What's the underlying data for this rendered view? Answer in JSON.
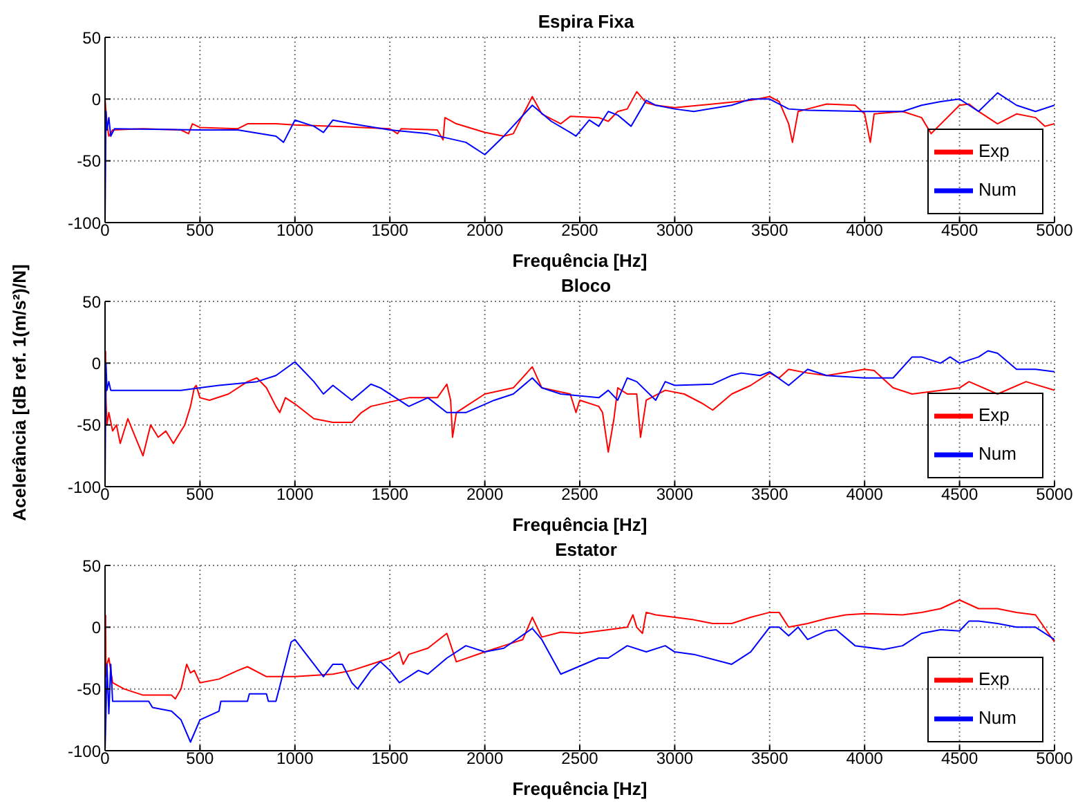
{
  "chart_data": [
    {
      "type": "line",
      "title": "Espira Fixa",
      "xlabel": "Frequência [Hz]",
      "xlim": [
        0,
        5000
      ],
      "xticks": [
        0,
        500,
        1000,
        1500,
        2000,
        2500,
        3000,
        3500,
        4000,
        4500,
        5000
      ],
      "ylim": [
        -100,
        50
      ],
      "yticks": [
        -100,
        -50,
        0,
        50
      ],
      "grid": true,
      "legend": "bottom right",
      "series": [
        {
          "name": "Exp",
          "color": "#ff0000",
          "x": [
            0,
            10,
            20,
            40,
            200,
            400,
            440,
            460,
            500,
            700,
            750,
            900,
            1000,
            1200,
            1500,
            1540,
            1560,
            1750,
            1780,
            1790,
            1850,
            2000,
            2100,
            2150,
            2250,
            2300,
            2400,
            2450,
            2600,
            2650,
            2700,
            2750,
            2800,
            2850,
            2900,
            3000,
            3200,
            3400,
            3500,
            3550,
            3600,
            3620,
            3650,
            3700,
            3800,
            3950,
            4000,
            4030,
            4050,
            4200,
            4300,
            4350,
            4500,
            4550,
            4600,
            4700,
            4800,
            4900,
            4950,
            5000
          ],
          "values": [
            0,
            -20,
            -30,
            -25,
            -24,
            -25,
            -28,
            -20,
            -23,
            -24,
            -20,
            -20,
            -21,
            -22,
            -24,
            -28,
            -24,
            -25,
            -33,
            -15,
            -20,
            -27,
            -30,
            -28,
            2,
            -12,
            -20,
            -14,
            -15,
            -18,
            -10,
            -8,
            6,
            -3,
            -5,
            -7,
            -4,
            -1,
            2,
            -2,
            -20,
            -35,
            -10,
            -8,
            -4,
            -5,
            -12,
            -35,
            -12,
            -10,
            -15,
            -28,
            -5,
            -4,
            -10,
            -20,
            -12,
            -15,
            -22,
            -20
          ]
        },
        {
          "name": "Num",
          "color": "#0000ff",
          "x": [
            0,
            5,
            10,
            20,
            30,
            50,
            500,
            700,
            900,
            940,
            1000,
            1100,
            1150,
            1200,
            1300,
            1500,
            1700,
            1900,
            2000,
            2100,
            2250,
            2350,
            2450,
            2480,
            2550,
            2600,
            2650,
            2700,
            2770,
            2850,
            2900,
            3000,
            3100,
            3300,
            3400,
            3500,
            3600,
            3700,
            4000,
            4200,
            4300,
            4400,
            4500,
            4550,
            4600,
            4700,
            4800,
            4900,
            5000
          ],
          "values": [
            -100,
            -10,
            -25,
            -15,
            -30,
            -24,
            -25,
            -25,
            -30,
            -35,
            -17,
            -22,
            -27,
            -17,
            -20,
            -25,
            -28,
            -35,
            -45,
            -30,
            -5,
            -18,
            -27,
            -30,
            -17,
            -22,
            -10,
            -13,
            -22,
            -1,
            -5,
            -8,
            -10,
            -5,
            0,
            0,
            -8,
            -9,
            -10,
            -10,
            -5,
            -2,
            0,
            -5,
            -10,
            5,
            -5,
            -10,
            -5
          ]
        }
      ]
    },
    {
      "type": "line",
      "title": "Bloco",
      "xlabel": "Frequência [Hz]",
      "ylabel": "Acelerância [dB ref. 1(m/s²)/N]",
      "xlim": [
        0,
        5000
      ],
      "xticks": [
        0,
        500,
        1000,
        1500,
        2000,
        2500,
        3000,
        3500,
        4000,
        4500,
        5000
      ],
      "ylim": [
        -100,
        50
      ],
      "yticks": [
        -100,
        -50,
        0,
        50
      ],
      "grid": true,
      "legend": "bottom right",
      "series": [
        {
          "name": "Exp",
          "color": "#ff0000",
          "x": [
            3,
            5,
            10,
            20,
            40,
            60,
            80,
            120,
            160,
            200,
            240,
            280,
            320,
            360,
            400,
            420,
            450,
            470,
            480,
            500,
            550,
            650,
            750,
            800,
            850,
            900,
            920,
            950,
            1000,
            1100,
            1200,
            1300,
            1350,
            1400,
            1600,
            1750,
            1800,
            1820,
            1830,
            1850,
            1900,
            2000,
            2150,
            2250,
            2300,
            2450,
            2480,
            2500,
            2600,
            2620,
            2650,
            2680,
            2700,
            2750,
            2800,
            2820,
            2850,
            2950,
            3050,
            3150,
            3200,
            3300,
            3400,
            3500,
            3550,
            3600,
            3700,
            3800,
            4000,
            4050,
            4150,
            4250,
            4400,
            4500,
            4550,
            4700,
            4850,
            5000
          ],
          "values": [
            10,
            -30,
            -50,
            -40,
            -55,
            -50,
            -65,
            -45,
            -60,
            -75,
            -50,
            -60,
            -55,
            -65,
            -55,
            -50,
            -35,
            -20,
            -18,
            -28,
            -30,
            -25,
            -15,
            -12,
            -20,
            -35,
            -40,
            -28,
            -33,
            -45,
            -48,
            -48,
            -40,
            -35,
            -28,
            -28,
            -17,
            -30,
            -60,
            -40,
            -35,
            -25,
            -20,
            -3,
            -20,
            -25,
            -40,
            -30,
            -35,
            -40,
            -72,
            -45,
            -20,
            -25,
            -25,
            -60,
            -30,
            -22,
            -25,
            -33,
            -38,
            -25,
            -18,
            -8,
            -12,
            -5,
            -8,
            -10,
            -5,
            -6,
            -20,
            -25,
            -22,
            -20,
            -15,
            -25,
            -15,
            -22
          ]
        },
        {
          "name": "Num",
          "color": "#0000ff",
          "x": [
            0,
            5,
            10,
            20,
            30,
            400,
            500,
            600,
            800,
            900,
            1000,
            1100,
            1150,
            1200,
            1300,
            1400,
            1450,
            1600,
            1700,
            1800,
            1900,
            2050,
            2150,
            2250,
            2300,
            2400,
            2600,
            2650,
            2700,
            2750,
            2800,
            2900,
            2950,
            3000,
            3200,
            3300,
            3350,
            3450,
            3500,
            3600,
            3700,
            3800,
            4000,
            4150,
            4250,
            4300,
            4400,
            4450,
            4500,
            4600,
            4650,
            4700,
            4800,
            4900,
            5000
          ],
          "values": [
            -100,
            0,
            -22,
            -15,
            -22,
            -22,
            -20,
            -18,
            -15,
            -10,
            1,
            -15,
            -25,
            -18,
            -30,
            -17,
            -20,
            -35,
            -28,
            -40,
            -40,
            -30,
            -25,
            -12,
            -20,
            -25,
            -28,
            -22,
            -30,
            -12,
            -15,
            -30,
            -15,
            -18,
            -17,
            -10,
            -8,
            -10,
            -7,
            -18,
            -5,
            -10,
            -12,
            -12,
            5,
            5,
            0,
            5,
            0,
            5,
            10,
            8,
            -5,
            -5,
            -7
          ]
        }
      ]
    },
    {
      "type": "line",
      "title": "Estator",
      "xlabel": "Frequência [Hz]",
      "xlim": [
        0,
        5000
      ],
      "xticks": [
        0,
        500,
        1000,
        1500,
        2000,
        2500,
        3000,
        3500,
        4000,
        4500,
        5000
      ],
      "ylim": [
        -100,
        50
      ],
      "yticks": [
        -100,
        -50,
        0,
        50
      ],
      "grid": true,
      "legend": "bottom right",
      "series": [
        {
          "name": "Exp",
          "color": "#ff0000",
          "x": [
            3,
            5,
            10,
            20,
            40,
            100,
            200,
            350,
            370,
            400,
            430,
            450,
            470,
            500,
            600,
            700,
            750,
            850,
            900,
            1000,
            1200,
            1300,
            1400,
            1500,
            1550,
            1570,
            1600,
            1700,
            1800,
            1850,
            2000,
            2100,
            2200,
            2250,
            2300,
            2400,
            2500,
            2650,
            2750,
            2780,
            2800,
            2830,
            2850,
            2900,
            3100,
            3200,
            3300,
            3400,
            3500,
            3550,
            3600,
            3700,
            3800,
            3900,
            4000,
            4200,
            4300,
            4400,
            4500,
            4600,
            4700,
            4800,
            4900,
            5000
          ],
          "values": [
            10,
            -40,
            -30,
            -25,
            -45,
            -50,
            -55,
            -55,
            -58,
            -50,
            -30,
            -37,
            -35,
            -45,
            -42,
            -35,
            -32,
            -40,
            -40,
            -40,
            -38,
            -35,
            -30,
            -25,
            -20,
            -30,
            -22,
            -17,
            -5,
            -28,
            -20,
            -15,
            -10,
            8,
            -8,
            -4,
            -5,
            -2,
            0,
            10,
            0,
            -5,
            12,
            10,
            6,
            3,
            3,
            8,
            12,
            12,
            0,
            3,
            7,
            10,
            11,
            10,
            12,
            15,
            22,
            15,
            15,
            12,
            10,
            -12
          ]
        },
        {
          "name": "Num",
          "color": "#0000ff",
          "x": [
            0,
            5,
            10,
            20,
            30,
            40,
            230,
            250,
            350,
            400,
            450,
            500,
            600,
            610,
            750,
            760,
            850,
            860,
            900,
            950,
            980,
            1000,
            1050,
            1100,
            1150,
            1200,
            1250,
            1300,
            1330,
            1400,
            1450,
            1500,
            1550,
            1650,
            1700,
            1800,
            1900,
            2000,
            2100,
            2250,
            2300,
            2400,
            2600,
            2650,
            2750,
            2850,
            2950,
            3000,
            3100,
            3300,
            3400,
            3500,
            3550,
            3600,
            3650,
            3700,
            3800,
            3850,
            3950,
            4100,
            4200,
            4300,
            4400,
            4500,
            4550,
            4600,
            4700,
            4800,
            4900,
            5000
          ],
          "values": [
            -100,
            -70,
            -30,
            -70,
            -30,
            -60,
            -60,
            -65,
            -68,
            -75,
            -93,
            -75,
            -68,
            -60,
            -60,
            -54,
            -54,
            -60,
            -60,
            -30,
            -12,
            -10,
            -20,
            -30,
            -40,
            -30,
            -30,
            -45,
            -50,
            -35,
            -28,
            -35,
            -45,
            -35,
            -38,
            -25,
            -15,
            -20,
            -17,
            -1,
            -10,
            -38,
            -25,
            -25,
            -15,
            -20,
            -15,
            -20,
            -22,
            -30,
            -20,
            0,
            0,
            -7,
            0,
            -10,
            -3,
            -2,
            -15,
            -18,
            -15,
            -5,
            -2,
            -3,
            5,
            5,
            3,
            0,
            0,
            -10
          ]
        }
      ]
    }
  ]
}
